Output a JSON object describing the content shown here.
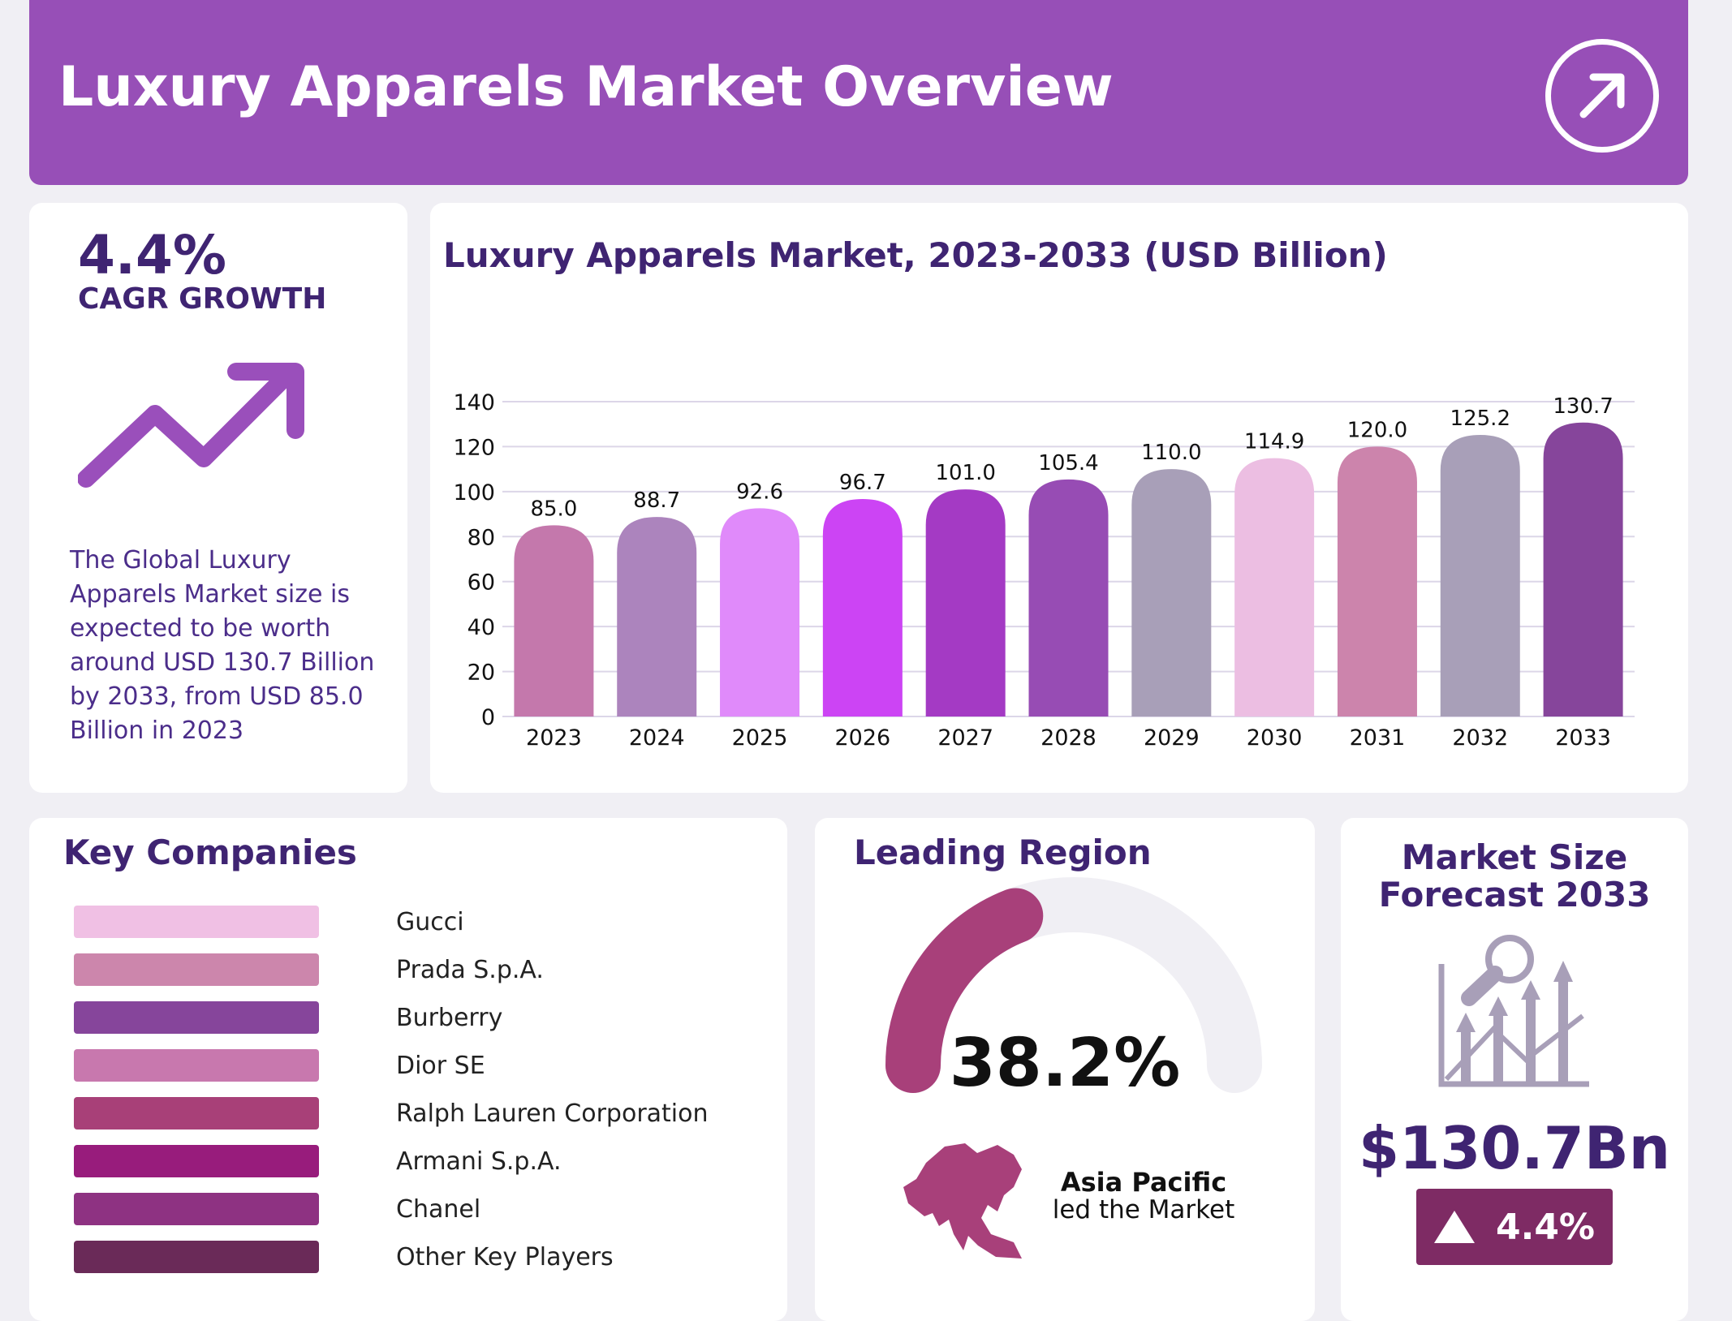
{
  "header": {
    "title": "Luxury Apparels Market Overview",
    "icon": "arrow-up-right-circle-icon"
  },
  "cagr": {
    "value": "4.4%",
    "label": "CAGR GROWTH",
    "icon": "trend-up-arrow-icon",
    "description": "The Global Luxury Apparels Market size is expected to be worth around USD 130.7 Billion by 2033, from USD 85.0 Billion in 2023"
  },
  "chart_data": {
    "type": "bar",
    "title": "Luxury Apparels Market, 2023-2033 (USD Billion)",
    "categories": [
      "2023",
      "2024",
      "2025",
      "2026",
      "2027",
      "2028",
      "2029",
      "2030",
      "2031",
      "2032",
      "2033"
    ],
    "values": [
      85.0,
      88.7,
      92.6,
      96.7,
      101.0,
      105.4,
      110.0,
      114.9,
      120.0,
      125.2,
      130.7
    ],
    "labels": [
      "85.0",
      "88.7",
      "92.6",
      "96.7",
      "101.0",
      "105.4",
      "110.0",
      "114.9",
      "120.0",
      "125.2",
      "130.7"
    ],
    "colors": [
      "#c478ac",
      "#ac84bd",
      "#e08afa",
      "#cc44f4",
      "#a43ac4",
      "#974cb4",
      "#a89fb8",
      "#ecbee2",
      "#cc84ac",
      "#a89fb8",
      "#86459b"
    ],
    "ylim": [
      0,
      140
    ],
    "yticks": [
      "0",
      "20",
      "40",
      "60",
      "80",
      "100",
      "120",
      "140"
    ],
    "grid": true
  },
  "companies": {
    "title": "Key Companies",
    "items": [
      {
        "name": "Gucci",
        "color": "#f0c0e4"
      },
      {
        "name": "Prada S.p.A.",
        "color": "#cc86ac"
      },
      {
        "name": "Burberry",
        "color": "#86459b"
      },
      {
        "name": "Dior SE",
        "color": "#c878ae"
      },
      {
        "name": "Ralph Lauren Corporation",
        "color": "#a84078"
      },
      {
        "name": "Armani S.p.A.",
        "color": "#981c7c"
      },
      {
        "name": "Chanel",
        "color": "#8e3282"
      },
      {
        "name": "Other Key Players",
        "color": "#6a2a58"
      }
    ]
  },
  "region": {
    "title": "Leading Region",
    "share": "38.2%",
    "share_value": 38.2,
    "name": "Asia Pacific",
    "subtitle": "led the Market",
    "gauge_color": "#a8407a",
    "track_color": "#f0eff4",
    "icon": "asia-map-icon"
  },
  "forecast": {
    "title_line1": "Market Size",
    "title_line2": "Forecast 2033",
    "value": "$130.7Bn",
    "growth": "4.4%",
    "icon": "analytics-chart-icon",
    "badge_color": "#7e2b64"
  }
}
